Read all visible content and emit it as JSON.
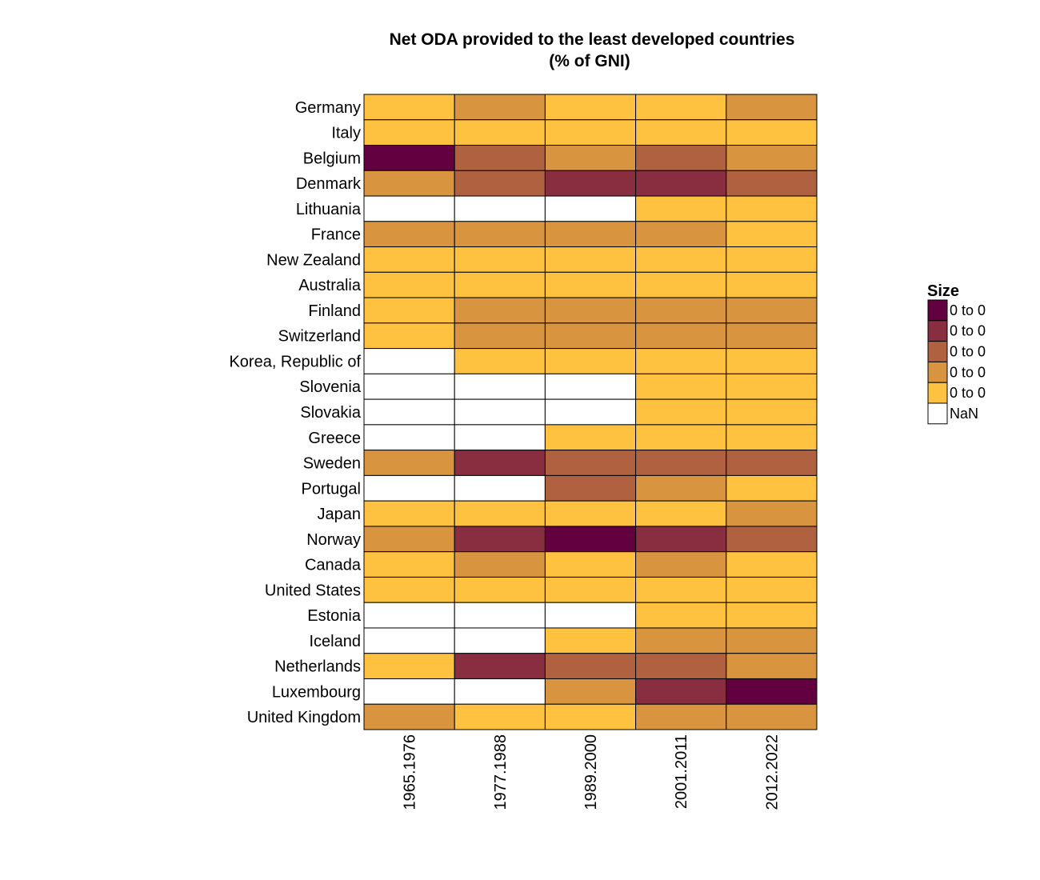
{
  "chart_data": {
    "type": "heatmap",
    "title": "Net ODA provided to the least developed countries",
    "subtitle": "(% of GNI)",
    "rows": [
      "Germany",
      "Italy",
      "Belgium",
      "Denmark",
      "Lithuania",
      "France",
      "New Zealand",
      "Australia",
      "Finland",
      "Switzerland",
      "Korea, Republic of",
      "Slovenia",
      "Slovakia",
      "Greece",
      "Sweden",
      "Portugal",
      "Japan",
      "Norway",
      "Canada",
      "United States",
      "Estonia",
      "Iceland",
      "Netherlands",
      "Luxembourg",
      "United Kingdom"
    ],
    "columns": [
      "1965.1976",
      "1977.1988",
      "1989.2000",
      "2001.2011",
      "2012.2022"
    ],
    "values": [
      [
        1,
        2,
        1,
        1,
        2
      ],
      [
        1,
        1,
        1,
        1,
        1
      ],
      [
        5,
        3,
        2,
        3,
        2
      ],
      [
        2,
        3,
        4,
        4,
        3
      ],
      [
        null,
        null,
        null,
        1,
        1
      ],
      [
        2,
        2,
        2,
        2,
        1
      ],
      [
        1,
        1,
        1,
        1,
        1
      ],
      [
        1,
        1,
        1,
        1,
        1
      ],
      [
        1,
        2,
        2,
        2,
        2
      ],
      [
        1,
        2,
        2,
        2,
        2
      ],
      [
        null,
        1,
        1,
        1,
        1
      ],
      [
        null,
        null,
        null,
        1,
        1
      ],
      [
        null,
        null,
        null,
        1,
        1
      ],
      [
        null,
        null,
        1,
        1,
        1
      ],
      [
        2,
        4,
        3,
        3,
        3
      ],
      [
        null,
        null,
        3,
        2,
        1
      ],
      [
        1,
        1,
        1,
        1,
        2
      ],
      [
        2,
        4,
        5,
        4,
        3
      ],
      [
        1,
        2,
        1,
        2,
        1
      ],
      [
        1,
        1,
        1,
        1,
        1
      ],
      [
        null,
        null,
        null,
        1,
        1
      ],
      [
        null,
        null,
        1,
        2,
        2
      ],
      [
        1,
        4,
        3,
        3,
        2
      ],
      [
        null,
        null,
        2,
        4,
        5
      ],
      [
        2,
        1,
        1,
        2,
        2
      ]
    ],
    "value_note": "Values are color-class indices 1 (lightest) to 5 (darkest); null = NaN",
    "colors": {
      "1": "#FFC240",
      "2": "#D8943E",
      "3": "#B06240",
      "4": "#882E40",
      "5": "#630040",
      "nan": "#FFFFFF"
    },
    "legend": {
      "title": "Size",
      "placement": "right",
      "entries": [
        {
          "label": "0 to 0",
          "level": 5
        },
        {
          "label": "0 to 0",
          "level": 4
        },
        {
          "label": "0 to 0",
          "level": 3
        },
        {
          "label": "0 to 0",
          "level": 2
        },
        {
          "label": "0 to 0",
          "level": 1
        },
        {
          "label": "NaN",
          "level": "nan"
        }
      ]
    }
  }
}
